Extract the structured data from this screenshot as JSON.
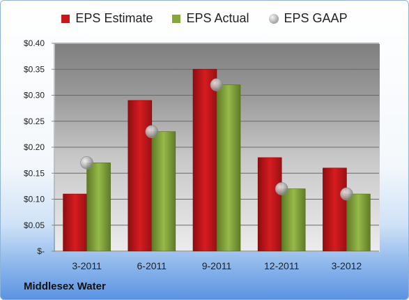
{
  "chart_data": {
    "type": "bar",
    "categories": [
      "3-2011",
      "6-2011",
      "9-2011",
      "12-2011",
      "3-2012"
    ],
    "series": [
      {
        "name": "EPS Estimate",
        "values": [
          0.11,
          0.29,
          0.35,
          0.18,
          0.16
        ],
        "color": "#c8161a"
      },
      {
        "name": "EPS Actual",
        "values": [
          0.17,
          0.23,
          0.32,
          0.12,
          0.11
        ],
        "color": "#86a83a"
      },
      {
        "name": "EPS GAAP",
        "values": [
          0.17,
          0.23,
          0.32,
          0.12,
          0.11
        ],
        "color": "#b4b4b4",
        "marker": "circle"
      }
    ],
    "ylim": [
      0,
      0.4
    ],
    "yticks": [
      0,
      0.05,
      0.1,
      0.15,
      0.2,
      0.25,
      0.3,
      0.35,
      0.4
    ],
    "ytick_labels": [
      "$-",
      "$0.05",
      "$0.10",
      "$0.15",
      "$0.20",
      "$0.25",
      "$0.30",
      "$0.35",
      "$0.40"
    ],
    "grid": true,
    "legend_position": "top-center"
  },
  "legend": {
    "estimate": "EPS Estimate",
    "actual": "EPS Actual",
    "gaap": "EPS GAAP"
  },
  "company": "Middlesex Water"
}
